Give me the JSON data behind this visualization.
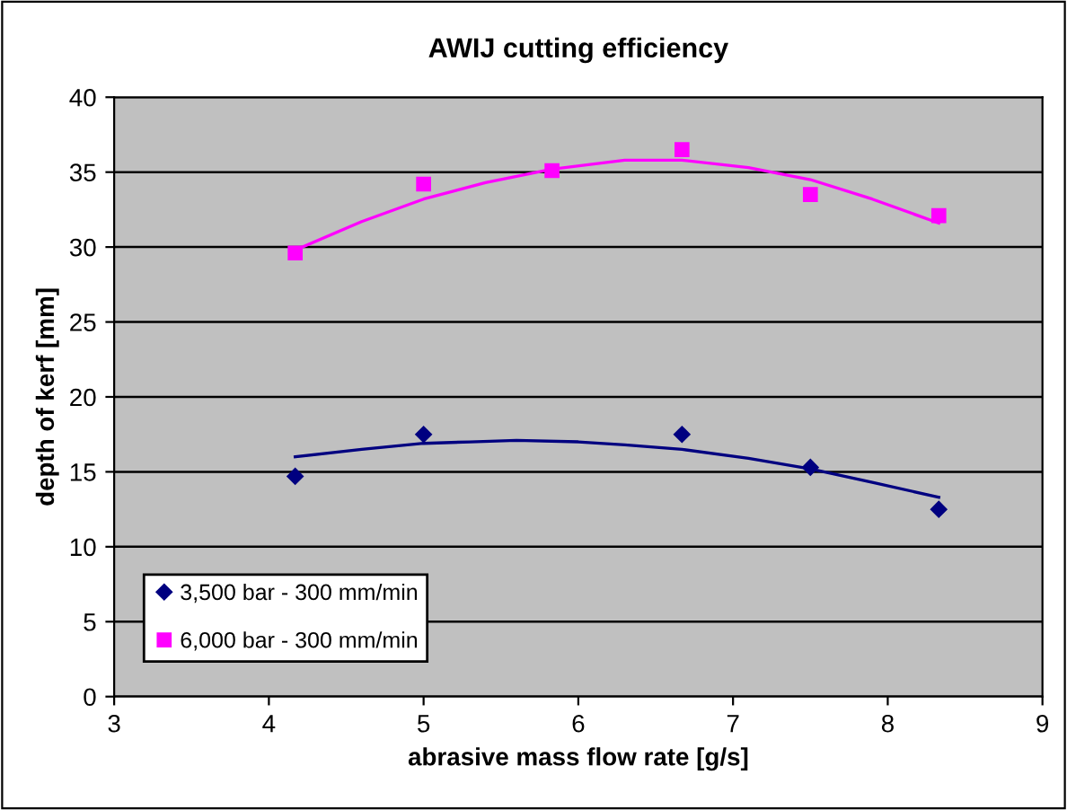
{
  "chart_data": {
    "type": "scatter",
    "title": "AWIJ cutting efficiency",
    "xlabel": "abrasive mass flow rate [g/s]",
    "ylabel": "depth of kerf [mm]",
    "xlim": [
      3,
      9
    ],
    "xticks": [
      3,
      4,
      5,
      6,
      7,
      8,
      9
    ],
    "ylim": [
      0,
      40
    ],
    "yticks": [
      0,
      5,
      10,
      15,
      20,
      25,
      30,
      35,
      40
    ],
    "grid": "y",
    "legend": "bottom left",
    "series": [
      {
        "name": "3,500 bar - 300 mm/min",
        "color": "#000080",
        "marker": "diamond",
        "x": [
          4.17,
          5,
          6.67,
          7.5,
          8.33
        ],
        "values": [
          14.7,
          17.5,
          17.5,
          15.3,
          12.5
        ]
      },
      {
        "name": "6,000 bar - 300 mm/min",
        "color": "#ff00ff",
        "marker": "square",
        "x": [
          4.17,
          5,
          5.83,
          6.67,
          7.5,
          8.33
        ],
        "values": [
          29.6,
          34.2,
          35.1,
          36.5,
          33.5,
          32.1
        ]
      },
      {
        "type": "line",
        "color": "#000080",
        "marker": "none",
        "x": [
          4.17,
          4.6,
          5,
          5.3,
          5.6,
          6,
          6.3,
          6.67,
          7.1,
          7.5,
          7.9,
          8.33
        ],
        "values": [
          16.0,
          16.5,
          16.9,
          17.0,
          17.1,
          17.0,
          16.8,
          16.5,
          15.9,
          15.2,
          14.3,
          13.3
        ]
      },
      {
        "type": "line",
        "color": "#ff00ff",
        "marker": "none",
        "x": [
          4.17,
          4.6,
          5,
          5.4,
          5.83,
          6.3,
          6.67,
          7.1,
          7.5,
          7.9,
          8.33
        ],
        "values": [
          29.8,
          31.7,
          33.2,
          34.3,
          35.2,
          35.8,
          35.8,
          35.3,
          34.5,
          33.2,
          31.6
        ]
      }
    ]
  }
}
